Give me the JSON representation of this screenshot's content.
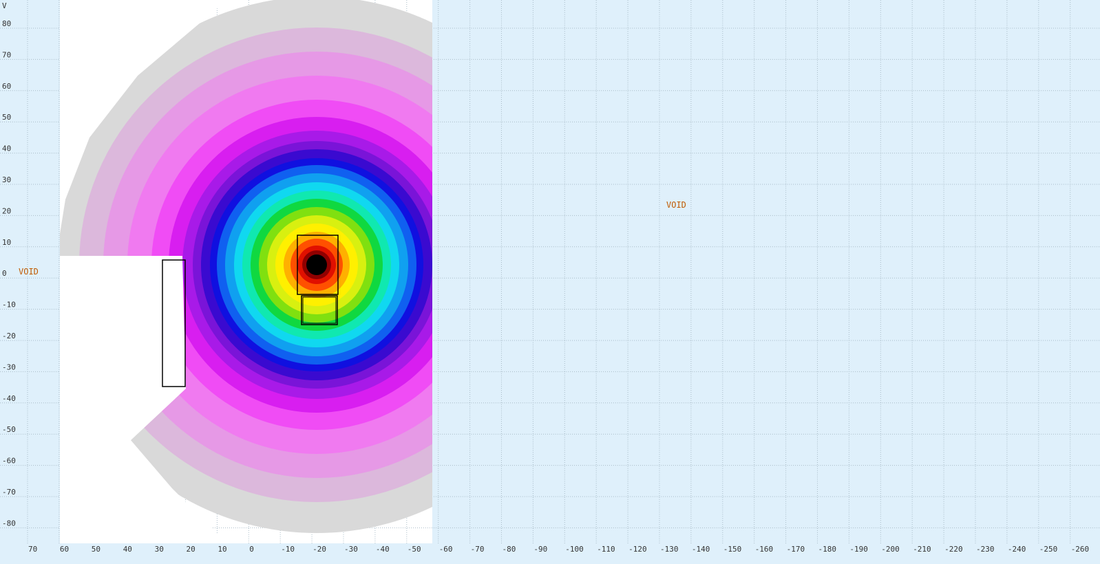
{
  "plot": {
    "axis_label": "V",
    "xticks": [
      70,
      60,
      50,
      40,
      30,
      20,
      10,
      0,
      -10,
      -20,
      -30,
      -40,
      -50,
      -60,
      -70,
      -80,
      -90,
      -100,
      -110,
      -120,
      -130,
      -140,
      -150,
      -160,
      -170,
      -180,
      -190,
      -200,
      -210,
      -220,
      -230,
      -240,
      -250,
      -260
    ],
    "yticks": [
      80,
      70,
      60,
      50,
      40,
      30,
      20,
      10,
      0,
      -10,
      -20,
      -30,
      -40,
      -50,
      -60,
      -70,
      -80
    ],
    "region_labels": [
      "VOID",
      "VOID"
    ]
  }
}
